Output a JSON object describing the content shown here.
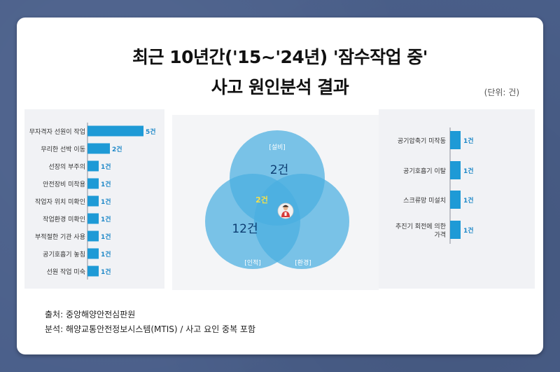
{
  "title": {
    "line1": "최근 10년간('15~'24년) '잠수작업 중'",
    "line2": "사고 원인분석 결과"
  },
  "unit": "(단위: 건)",
  "colors": {
    "bar_fill": "#1e9ad6",
    "value_text": "#1e88c8",
    "venn_fill": "#4aaee0",
    "venn_overlap_text": "#f5e04a",
    "venn_dark_text": "#0c3d72"
  },
  "chart_data": [
    {
      "type": "bar",
      "orientation": "horizontal",
      "categories": [
        "무자격자 선원이 작업",
        "무리한 선박 이동",
        "선장의 부주의",
        "안전장비 미착용",
        "작업자 위치 미확인",
        "작업환경 미확인",
        "부적절한 기관 사용",
        "공기호흡기 놓침",
        "선원 작업 미숙"
      ],
      "values": [
        5,
        2,
        1,
        1,
        1,
        1,
        1,
        1,
        1
      ],
      "value_labels": [
        "5건",
        "2건",
        "1건",
        "1건",
        "1건",
        "1건",
        "1건",
        "1건",
        "1건"
      ],
      "xlim": [
        0,
        5
      ]
    },
    {
      "type": "venn",
      "sets": [
        {
          "label": "[설비]",
          "value": 2,
          "value_label": "2건"
        },
        {
          "label": "[인적]",
          "value": 12,
          "value_label": "12건"
        },
        {
          "label": "[환경]"
        }
      ],
      "intersections": [
        {
          "sets": [
            "[설비]",
            "[인적]"
          ],
          "value": 2,
          "value_label": "2건"
        }
      ],
      "center_icon": "worker-icon"
    },
    {
      "type": "bar",
      "orientation": "horizontal",
      "categories": [
        "공기압축기 미작동",
        "공기호흡기 이탈",
        "스크류망 미설치",
        "추진기 회전에 의한 가격"
      ],
      "category_lines": [
        [
          "공기압축기 미작동"
        ],
        [
          "공기호흡기 이탈"
        ],
        [
          "스크류망 미설치"
        ],
        [
          "추진기 회전에 의한",
          "가격"
        ]
      ],
      "values": [
        1,
        1,
        1,
        1
      ],
      "value_labels": [
        "1건",
        "1건",
        "1건",
        "1건"
      ]
    }
  ],
  "source": {
    "line1": "출처: 중앙해양안전심판원",
    "line2": "분석: 해양교통안전정보시스템(MTIS) / 사고 요인 중복 포함"
  }
}
